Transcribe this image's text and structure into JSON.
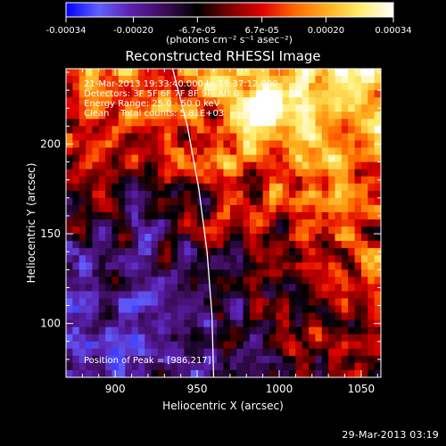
{
  "colorbar": {
    "tick_labels": [
      "-0.00034",
      "-0.00020",
      "-6.7e-05",
      "6.7e-05",
      "0.00020",
      "0.00034"
    ],
    "tick_values": [
      -0.00034,
      -0.0002,
      -6.7e-05,
      6.7e-05,
      0.0002,
      0.00034
    ],
    "range": [
      -0.00034,
      0.00034
    ],
    "units_label": "(photons cm⁻² s⁻¹ asec⁻²)",
    "stops": [
      "#0000ff",
      "#6060ff",
      "#5a1fae",
      "#3d0c5a",
      "#000000",
      "#7a0000",
      "#e00000",
      "#ff6a00",
      "#ffb020",
      "#ffee70",
      "#ffffff"
    ]
  },
  "chart_data": {
    "type": "heatmap",
    "title": "Reconstructed RHESSI Image",
    "xlabel": "Heliocentric X (arcsec)",
    "ylabel": "Heliocentric Y (arcsec)",
    "xlim": [
      870,
      1062
    ],
    "ylim": [
      70,
      242
    ],
    "x_ticks": [
      900,
      950,
      1000,
      1050
    ],
    "y_ticks": [
      100,
      150,
      200
    ],
    "annotations": [
      "21-Mar-2013 19:33:40.000 to 19:37:12.000",
      "Detectors: 3F 5F 6F 7F 8F 9F, Att 0",
      "Energy Range: 25.0 - 50.0 keV",
      "Clean    Total counts: 5.81E+03",
      "Position of Peak = [986,217]"
    ],
    "peak": [
      986,
      217
    ],
    "limb_curve": [
      [
        935,
        242
      ],
      [
        944,
        210
      ],
      [
        951,
        175
      ],
      [
        956,
        140
      ],
      [
        959,
        105
      ],
      [
        960,
        70
      ]
    ],
    "grid": {
      "cols": 48,
      "rows": 43
    },
    "colormap": "blue-purple-red-yellow-white"
  },
  "footer": {
    "date": "29-Mar-2013 03:19"
  }
}
